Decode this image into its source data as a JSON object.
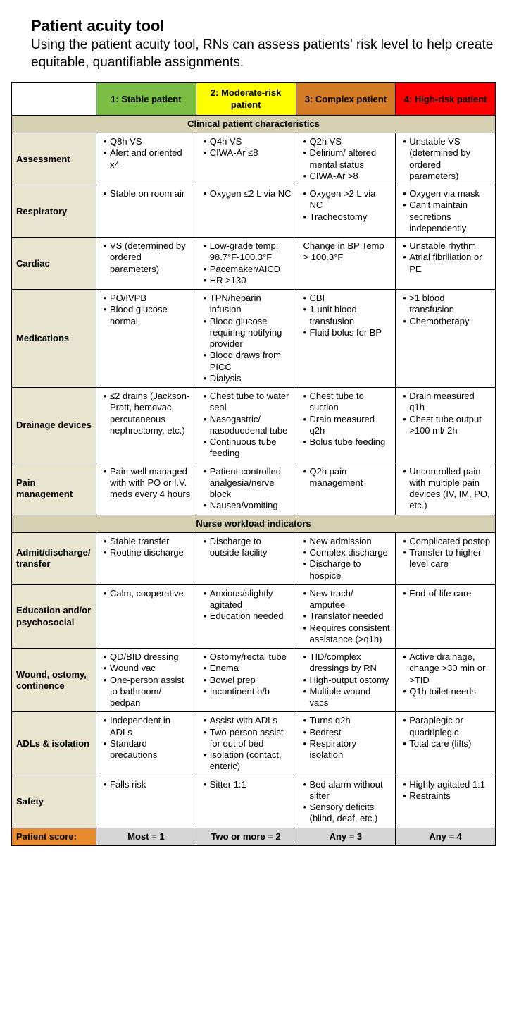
{
  "title": "Patient acuity tool",
  "subtitle": "Using the patient acuity tool, RNs can assess patients' risk level to help create equitable, quantifiable assignments.",
  "colors": {
    "rowlabel_bg": "#e8e4d0",
    "section_bg": "#d6d0b2",
    "score_label_bg": "#e78b2f",
    "score_cell_bg": "#d6d6d6",
    "col1": "#7abf43",
    "col2": "#ffff00",
    "col3": "#d47c25",
    "col4": "#ff0000"
  },
  "columns": [
    {
      "label": "1: Stable patient"
    },
    {
      "label": "2: Moderate-risk patient"
    },
    {
      "label": "3: Complex patient"
    },
    {
      "label": "4: High-risk patient"
    }
  ],
  "sections": [
    {
      "title": "Clinical patient characteristics",
      "rows": [
        {
          "label": "Assessment",
          "cells": [
            [
              "Q8h VS",
              "Alert and oriented x4"
            ],
            [
              "Q4h VS",
              "CIWA-Ar ≤8"
            ],
            [
              "Q2h VS",
              "Delirium/ altered mental status",
              "CIWA-Ar >8"
            ],
            [
              "Unstable VS (determined by ordered parameters)"
            ]
          ]
        },
        {
          "label": "Respiratory",
          "cells": [
            [
              "Stable on room air"
            ],
            [
              "Oxygen ≤2 L via NC"
            ],
            [
              "Oxygen >2 L via NC",
              "Tracheostomy"
            ],
            [
              "Oxygen via mask",
              "Can't maintain secretions independently"
            ]
          ]
        },
        {
          "label": "Cardiac",
          "cells": [
            [
              "VS (determined by ordered parameters)"
            ],
            [
              "Low-grade temp: 98.7°F-100.3°F",
              "Pacemaker/AICD",
              "HR >130"
            ],
            "Change in BP Temp > 100.3°F",
            [
              "Unstable rhythm",
              "Atrial fibrillation or PE"
            ]
          ]
        },
        {
          "label": "Medications",
          "cells": [
            [
              "PO/IVPB",
              "Blood glucose normal"
            ],
            [
              "TPN/heparin infusion",
              "Blood glucose requiring notifying provider",
              "Blood draws from PICC",
              "Dialysis"
            ],
            [
              "CBI",
              "1 unit blood transfusion",
              "Fluid bolus for BP"
            ],
            [
              ">1 blood transfusion",
              "Chemotherapy"
            ]
          ]
        },
        {
          "label": "Drainage devices",
          "cells": [
            [
              "≤2 drains (Jackson- Pratt, hemovac, percutaneous nephrostomy, etc.)"
            ],
            [
              "Chest tube to water seal",
              "Nasogastric/ nasoduodenal tube",
              "Continuous tube feeding"
            ],
            [
              "Chest tube to suction",
              "Drain measured q2h",
              "Bolus tube feeding"
            ],
            [
              "Drain measured q1h",
              "Chest tube output >100 ml/ 2h"
            ]
          ]
        },
        {
          "label": "Pain management",
          "cells": [
            [
              "Pain well managed with with PO or I.V. meds every 4 hours"
            ],
            [
              "Patient-controlled analgesia/nerve block",
              "Nausea/vomiting"
            ],
            [
              "Q2h pain management"
            ],
            [
              "Uncontrolled pain with multiple pain devices (IV, IM, PO, etc.)"
            ]
          ]
        }
      ]
    },
    {
      "title": "Nurse workload indicators",
      "rows": [
        {
          "label": "Admit/discharge/ transfer",
          "cells": [
            [
              "Stable transfer",
              "Routine discharge"
            ],
            [
              "Discharge to outside facility"
            ],
            [
              "New admission",
              "Complex discharge",
              "Discharge to hospice"
            ],
            [
              "Complicated postop",
              "Transfer to higher-level care"
            ]
          ]
        },
        {
          "label": "Education and/or psychosocial",
          "cells": [
            [
              "Calm, cooperative"
            ],
            [
              "Anxious/slightly agitated",
              "Education needed"
            ],
            [
              "New trach/ amputee",
              "Translator needed",
              "Requires consistent assistance (>q1h)"
            ],
            [
              "End-of-life care"
            ]
          ]
        },
        {
          "label": "Wound, ostomy, continence",
          "cells": [
            [
              "QD/BID dressing",
              "Wound vac",
              "One-person assist to bathroom/ bedpan"
            ],
            [
              "Ostomy/rectal tube",
              "Enema",
              "Bowel prep",
              "Incontinent b/b"
            ],
            [
              "TID/complex dressings by RN",
              "High-output ostomy",
              "Multiple wound vacs"
            ],
            [
              "Active drainage, change >30 min or >TID",
              "Q1h toilet needs"
            ]
          ]
        },
        {
          "label": "ADLs & isolation",
          "cells": [
            [
              "Independent in ADLs",
              "Standard precautions"
            ],
            [
              "Assist with ADLs",
              "Two-person assist for out of bed",
              "Isolation (contact, enteric)"
            ],
            [
              "Turns q2h",
              "Bedrest",
              "Respiratory isolation"
            ],
            [
              "Paraplegic or quadriplegic",
              "Total care (lifts)"
            ]
          ]
        },
        {
          "label": "Safety",
          "cells": [
            [
              "Falls risk"
            ],
            [
              "Sitter 1:1"
            ],
            [
              "Bed alarm without sitter",
              "Sensory deficits (blind, deaf, etc.)"
            ],
            [
              "Highly agitated 1:1",
              "Restraints"
            ]
          ]
        }
      ]
    }
  ],
  "score": {
    "label": "Patient score:",
    "cells": [
      "Most = 1",
      "Two or more = 2",
      "Any = 3",
      "Any = 4"
    ]
  }
}
